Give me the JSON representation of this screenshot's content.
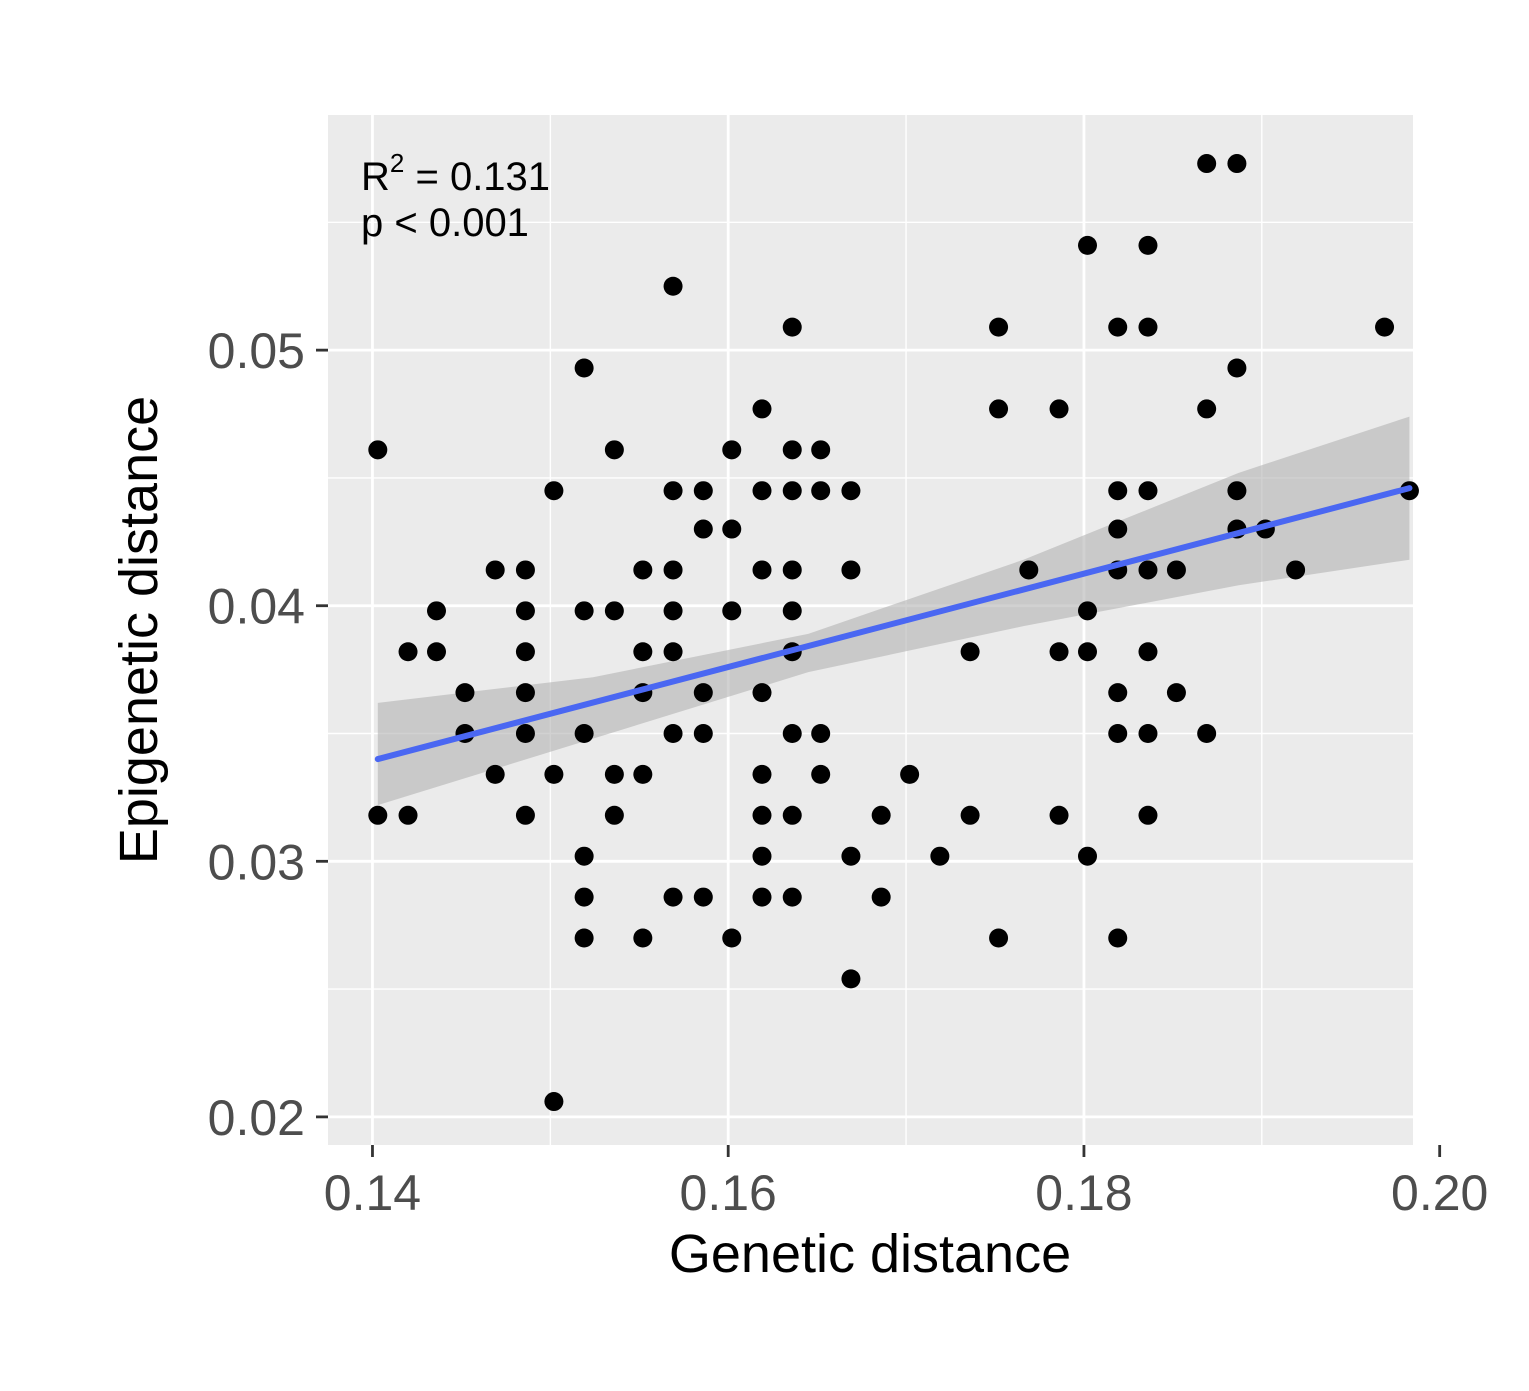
{
  "chart_data": {
    "type": "scatter",
    "title": "",
    "xlabel": "Genetic distance",
    "ylabel": "Epigenetic distance",
    "xlim": [
      0.1375,
      0.1985
    ],
    "ylim": [
      0.0189,
      0.0592
    ],
    "x_ticks": [
      0.14,
      0.16,
      0.18,
      0.2
    ],
    "x_tick_labels": [
      "0.14",
      "0.16",
      "0.18",
      "0.20"
    ],
    "y_ticks": [
      0.02,
      0.03,
      0.04,
      0.05
    ],
    "y_tick_labels": [
      "0.02",
      "0.03",
      "0.04",
      "0.05"
    ],
    "grid": true,
    "annotation": {
      "r2_base": "R",
      "r2_sup": "2",
      "r2_text": " = 0.131",
      "p_text": "p < 0.001"
    },
    "colors": {
      "panel": "#ebebeb",
      "grid": "#ffffff",
      "points": "#000000",
      "fit_line": "#4a67f2",
      "ribbon": "#b3b3b3"
    },
    "fit": {
      "x": [
        0.1403,
        0.1983
      ],
      "y": [
        0.034,
        0.0446
      ],
      "ci_x": [
        0.1403,
        0.1524,
        0.1645,
        0.1766,
        0.1887,
        0.1983
      ],
      "ci_lower": [
        0.0322,
        0.0348,
        0.0374,
        0.0392,
        0.0408,
        0.0418
      ],
      "ci_upper": [
        0.0362,
        0.0372,
        0.0389,
        0.0418,
        0.0452,
        0.0474
      ]
    },
    "points": [
      [
        0.1403,
        0.0461
      ],
      [
        0.1403,
        0.0318
      ],
      [
        0.142,
        0.0382
      ],
      [
        0.142,
        0.0318
      ],
      [
        0.1436,
        0.0398
      ],
      [
        0.1436,
        0.0382
      ],
      [
        0.1452,
        0.0366
      ],
      [
        0.1452,
        0.035
      ],
      [
        0.1469,
        0.0414
      ],
      [
        0.1469,
        0.0334
      ],
      [
        0.1486,
        0.0414
      ],
      [
        0.1486,
        0.0398
      ],
      [
        0.1486,
        0.0382
      ],
      [
        0.1486,
        0.0366
      ],
      [
        0.1486,
        0.035
      ],
      [
        0.1486,
        0.0318
      ],
      [
        0.1502,
        0.0445
      ],
      [
        0.1502,
        0.0334
      ],
      [
        0.1502,
        0.0206
      ],
      [
        0.1519,
        0.0493
      ],
      [
        0.1519,
        0.0398
      ],
      [
        0.1519,
        0.035
      ],
      [
        0.1519,
        0.0302
      ],
      [
        0.1519,
        0.0286
      ],
      [
        0.1519,
        0.027
      ],
      [
        0.1536,
        0.0461
      ],
      [
        0.1536,
        0.0398
      ],
      [
        0.1536,
        0.0334
      ],
      [
        0.1536,
        0.0318
      ],
      [
        0.1552,
        0.0414
      ],
      [
        0.1552,
        0.0382
      ],
      [
        0.1552,
        0.0366
      ],
      [
        0.1552,
        0.0334
      ],
      [
        0.1552,
        0.027
      ],
      [
        0.1569,
        0.0525
      ],
      [
        0.1569,
        0.0445
      ],
      [
        0.1569,
        0.0414
      ],
      [
        0.1569,
        0.0398
      ],
      [
        0.1569,
        0.0382
      ],
      [
        0.1569,
        0.035
      ],
      [
        0.1569,
        0.0286
      ],
      [
        0.1586,
        0.0445
      ],
      [
        0.1586,
        0.043
      ],
      [
        0.1586,
        0.0366
      ],
      [
        0.1586,
        0.035
      ],
      [
        0.1586,
        0.0286
      ],
      [
        0.1602,
        0.0461
      ],
      [
        0.1602,
        0.043
      ],
      [
        0.1602,
        0.0398
      ],
      [
        0.1602,
        0.027
      ],
      [
        0.1619,
        0.0477
      ],
      [
        0.1619,
        0.0445
      ],
      [
        0.1619,
        0.0414
      ],
      [
        0.1619,
        0.0366
      ],
      [
        0.1619,
        0.0334
      ],
      [
        0.1619,
        0.0318
      ],
      [
        0.1619,
        0.0302
      ],
      [
        0.1619,
        0.0286
      ],
      [
        0.1636,
        0.0509
      ],
      [
        0.1636,
        0.0461
      ],
      [
        0.1636,
        0.0445
      ],
      [
        0.1636,
        0.0414
      ],
      [
        0.1636,
        0.0398
      ],
      [
        0.1636,
        0.0382
      ],
      [
        0.1636,
        0.035
      ],
      [
        0.1636,
        0.0318
      ],
      [
        0.1636,
        0.0286
      ],
      [
        0.1652,
        0.0461
      ],
      [
        0.1652,
        0.0445
      ],
      [
        0.1652,
        0.035
      ],
      [
        0.1652,
        0.0334
      ],
      [
        0.1669,
        0.0445
      ],
      [
        0.1669,
        0.0414
      ],
      [
        0.1669,
        0.0302
      ],
      [
        0.1669,
        0.0254
      ],
      [
        0.1686,
        0.0318
      ],
      [
        0.1686,
        0.0286
      ],
      [
        0.1702,
        0.0334
      ],
      [
        0.1719,
        0.0302
      ],
      [
        0.1736,
        0.0382
      ],
      [
        0.1736,
        0.0318
      ],
      [
        0.1752,
        0.0509
      ],
      [
        0.1752,
        0.0477
      ],
      [
        0.1752,
        0.027
      ],
      [
        0.1769,
        0.0414
      ],
      [
        0.1786,
        0.0477
      ],
      [
        0.1786,
        0.0382
      ],
      [
        0.1786,
        0.0318
      ],
      [
        0.1802,
        0.0541
      ],
      [
        0.1802,
        0.0398
      ],
      [
        0.1802,
        0.0382
      ],
      [
        0.1802,
        0.0302
      ],
      [
        0.1819,
        0.0509
      ],
      [
        0.1819,
        0.0445
      ],
      [
        0.1819,
        0.043
      ],
      [
        0.1819,
        0.0414
      ],
      [
        0.1819,
        0.0366
      ],
      [
        0.1819,
        0.035
      ],
      [
        0.1819,
        0.027
      ],
      [
        0.1836,
        0.0541
      ],
      [
        0.1836,
        0.0509
      ],
      [
        0.1836,
        0.0445
      ],
      [
        0.1836,
        0.0414
      ],
      [
        0.1836,
        0.0382
      ],
      [
        0.1836,
        0.035
      ],
      [
        0.1836,
        0.0318
      ],
      [
        0.1852,
        0.0414
      ],
      [
        0.1852,
        0.0366
      ],
      [
        0.1869,
        0.0573
      ],
      [
        0.1869,
        0.0477
      ],
      [
        0.1869,
        0.035
      ],
      [
        0.1886,
        0.0573
      ],
      [
        0.1886,
        0.0493
      ],
      [
        0.1886,
        0.0445
      ],
      [
        0.1886,
        0.043
      ],
      [
        0.1902,
        0.043
      ],
      [
        0.1919,
        0.0414
      ],
      [
        0.1969,
        0.0509
      ],
      [
        0.1983,
        0.0445
      ]
    ]
  }
}
